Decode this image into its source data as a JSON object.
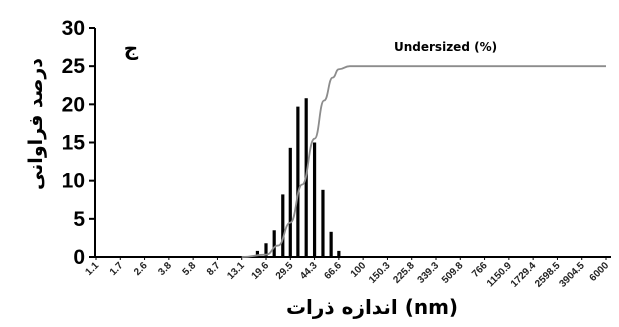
{
  "chart_data": {
    "type": "bar",
    "panel_label": "ج",
    "ylabel": "درصد فراوانی",
    "xlabel": "(nm) اندازه ذرات",
    "ylim": [
      0,
      30
    ],
    "yticks": [
      0,
      5,
      10,
      15,
      20,
      25,
      30
    ],
    "x_ticks": [
      "1.1",
      "1.7",
      "2.6",
      "3.8",
      "5.8",
      "8.7",
      "13.1",
      "19.6",
      "29.5",
      "44.3",
      "66.6",
      "100",
      "150.3",
      "225.8",
      "339.3",
      "509.8",
      "766",
      "1150.9",
      "1729.4",
      "2598.5",
      "3904.5",
      "6000"
    ],
    "bars": {
      "x": [
        17.0,
        19.6,
        22.5,
        26.0,
        29.5,
        33.5,
        38.5,
        44.3,
        51.0,
        58.5,
        66.6
      ],
      "values": [
        0.8,
        1.8,
        3.5,
        8.2,
        14.3,
        19.7,
        20.8,
        15.0,
        8.8,
        3.3,
        0.8
      ]
    },
    "series": [
      {
        "name": "Undersized (%)",
        "type": "line",
        "x": [
          13.1,
          19.6,
          24.0,
          29.5,
          36.0,
          44.3,
          52.0,
          60.0,
          66.6,
          80.0,
          100,
          6000
        ],
        "values": [
          0,
          0.3,
          1.5,
          4.5,
          9.5,
          15.5,
          20.5,
          23.5,
          24.6,
          25,
          25,
          25
        ]
      }
    ],
    "grid": false,
    "colors": {
      "bars": "#000000",
      "line": "#8c8c8c",
      "axis": "#000000"
    }
  }
}
